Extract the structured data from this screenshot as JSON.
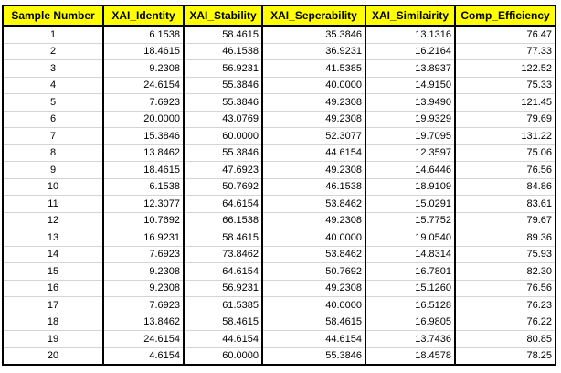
{
  "table": {
    "header_bg": "#ffff00",
    "columns": [
      "Sample Number",
      "XAI_Identity",
      "XAI_Stability",
      "XAI_Seperability",
      "XAI_Similairity",
      "Comp_Efficiency"
    ],
    "rows": [
      [
        "1",
        "6.1538",
        "58.4615",
        "35.3846",
        "13.1316",
        "76.47"
      ],
      [
        "2",
        "18.4615",
        "46.1538",
        "36.9231",
        "16.2164",
        "77.33"
      ],
      [
        "3",
        "9.2308",
        "56.9231",
        "41.5385",
        "13.8937",
        "122.52"
      ],
      [
        "4",
        "24.6154",
        "55.3846",
        "40.0000",
        "14.9150",
        "75.33"
      ],
      [
        "5",
        "7.6923",
        "55.3846",
        "49.2308",
        "13.9490",
        "121.45"
      ],
      [
        "6",
        "20.0000",
        "43.0769",
        "49.2308",
        "19.9329",
        "79.69"
      ],
      [
        "7",
        "15.3846",
        "60.0000",
        "52.3077",
        "19.7095",
        "131.22"
      ],
      [
        "8",
        "13.8462",
        "55.3846",
        "44.6154",
        "12.3597",
        "75.06"
      ],
      [
        "9",
        "18.4615",
        "47.6923",
        "49.2308",
        "14.6446",
        "76.56"
      ],
      [
        "10",
        "6.1538",
        "50.7692",
        "46.1538",
        "18.9109",
        "84.86"
      ],
      [
        "11",
        "12.3077",
        "64.6154",
        "53.8462",
        "15.0291",
        "83.61"
      ],
      [
        "12",
        "10.7692",
        "66.1538",
        "49.2308",
        "15.7752",
        "79.67"
      ],
      [
        "13",
        "16.9231",
        "58.4615",
        "40.0000",
        "19.0540",
        "89.36"
      ],
      [
        "14",
        "7.6923",
        "73.8462",
        "53.8462",
        "14.8314",
        "75.93"
      ],
      [
        "15",
        "9.2308",
        "64.6154",
        "50.7692",
        "16.7801",
        "82.30"
      ],
      [
        "16",
        "9.2308",
        "56.9231",
        "49.2308",
        "15.1260",
        "76.56"
      ],
      [
        "17",
        "7.6923",
        "61.5385",
        "40.0000",
        "16.5128",
        "76.23"
      ],
      [
        "18",
        "13.8462",
        "58.4615",
        "58.4615",
        "16.9805",
        "76.22"
      ],
      [
        "19",
        "24.6154",
        "44.6154",
        "44.6154",
        "13.7436",
        "80.85"
      ],
      [
        "20",
        "4.6154",
        "60.0000",
        "55.3846",
        "18.4578",
        "78.25"
      ]
    ]
  }
}
